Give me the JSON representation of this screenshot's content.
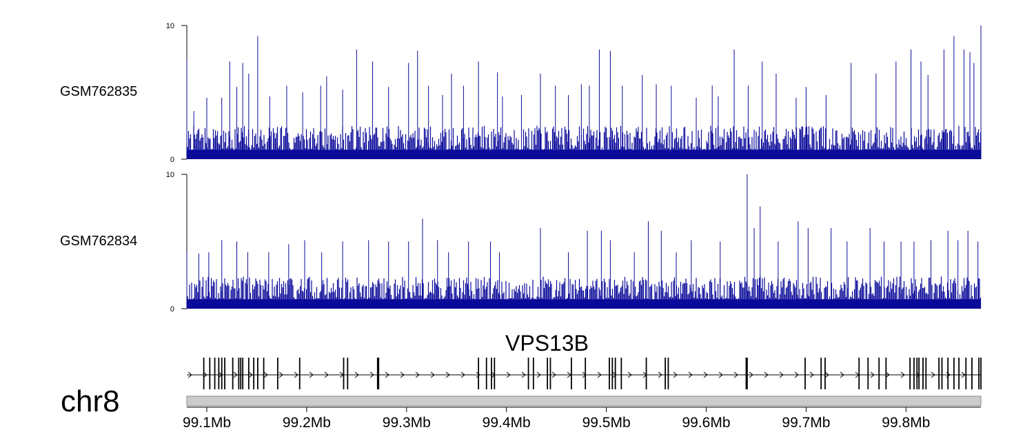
{
  "chromosome": "chr8",
  "gene": {
    "name": "VPS13B",
    "strand": "+",
    "start_mb": 99.08,
    "end_mb": 99.875,
    "exons_mb": [
      99.097,
      99.103,
      99.108,
      99.112,
      99.115,
      99.118,
      99.126,
      99.132,
      99.134,
      99.136,
      99.142,
      99.147,
      99.151,
      99.157,
      99.171,
      99.193,
      99.237,
      99.241,
      99.271,
      99.272,
      99.372,
      99.38,
      99.385,
      99.388,
      99.422,
      99.427,
      99.441,
      99.444,
      99.465,
      99.479,
      99.503,
      99.506,
      99.509,
      99.515,
      99.54,
      99.559,
      99.562,
      99.64,
      99.641,
      99.699,
      99.715,
      99.719,
      99.753,
      99.762,
      99.773,
      99.78,
      99.804,
      99.808,
      99.811,
      99.813,
      99.817,
      99.82,
      99.833,
      99.836,
      99.842,
      99.848,
      99.853,
      99.86,
      99.866,
      99.873,
      99.875
    ]
  },
  "chart_data": [
    {
      "type": "area",
      "track": "GSM762835",
      "ylim": [
        0,
        10
      ],
      "yticks": [
        "10",
        "0"
      ],
      "x_range_mb": [
        99.08,
        99.875
      ],
      "baseline": 0.7,
      "noise_max": 2.5,
      "peaks": [
        {
          "x_mb": 99.08,
          "y": 7.5
        },
        {
          "x_mb": 99.087,
          "y": 3.6
        },
        {
          "x_mb": 99.1,
          "y": 4.6
        },
        {
          "x_mb": 99.115,
          "y": 4.6
        },
        {
          "x_mb": 99.123,
          "y": 7.3
        },
        {
          "x_mb": 99.13,
          "y": 5.4
        },
        {
          "x_mb": 99.136,
          "y": 7.2
        },
        {
          "x_mb": 99.142,
          "y": 6.4
        },
        {
          "x_mb": 99.151,
          "y": 9.2
        },
        {
          "x_mb": 99.163,
          "y": 4.7
        },
        {
          "x_mb": 99.18,
          "y": 5.5
        },
        {
          "x_mb": 99.196,
          "y": 5.0
        },
        {
          "x_mb": 99.214,
          "y": 5.5
        },
        {
          "x_mb": 99.22,
          "y": 6.2
        },
        {
          "x_mb": 99.236,
          "y": 5.2
        },
        {
          "x_mb": 99.25,
          "y": 8.2
        },
        {
          "x_mb": 99.266,
          "y": 7.3
        },
        {
          "x_mb": 99.282,
          "y": 5.4
        },
        {
          "x_mb": 99.302,
          "y": 7.2
        },
        {
          "x_mb": 99.311,
          "y": 8.1
        },
        {
          "x_mb": 99.322,
          "y": 5.5
        },
        {
          "x_mb": 99.336,
          "y": 4.8
        },
        {
          "x_mb": 99.345,
          "y": 6.4
        },
        {
          "x_mb": 99.357,
          "y": 5.5
        },
        {
          "x_mb": 99.372,
          "y": 7.3
        },
        {
          "x_mb": 99.391,
          "y": 6.5
        },
        {
          "x_mb": 99.396,
          "y": 4.7
        },
        {
          "x_mb": 99.415,
          "y": 4.8
        },
        {
          "x_mb": 99.434,
          "y": 6.4
        },
        {
          "x_mb": 99.449,
          "y": 5.5
        },
        {
          "x_mb": 99.462,
          "y": 4.8
        },
        {
          "x_mb": 99.475,
          "y": 5.6
        },
        {
          "x_mb": 99.483,
          "y": 5.5
        },
        {
          "x_mb": 99.493,
          "y": 8.2
        },
        {
          "x_mb": 99.504,
          "y": 8.1
        },
        {
          "x_mb": 99.516,
          "y": 5.5
        },
        {
          "x_mb": 99.536,
          "y": 6.3
        },
        {
          "x_mb": 99.55,
          "y": 5.6
        },
        {
          "x_mb": 99.565,
          "y": 5.5
        },
        {
          "x_mb": 99.59,
          "y": 4.6
        },
        {
          "x_mb": 99.606,
          "y": 5.5
        },
        {
          "x_mb": 99.612,
          "y": 4.7
        },
        {
          "x_mb": 99.628,
          "y": 8.2
        },
        {
          "x_mb": 99.642,
          "y": 5.5
        },
        {
          "x_mb": 99.656,
          "y": 7.3
        },
        {
          "x_mb": 99.67,
          "y": 6.4
        },
        {
          "x_mb": 99.69,
          "y": 4.6
        },
        {
          "x_mb": 99.7,
          "y": 5.4
        },
        {
          "x_mb": 99.72,
          "y": 4.8
        },
        {
          "x_mb": 99.745,
          "y": 7.2
        },
        {
          "x_mb": 99.77,
          "y": 6.4
        },
        {
          "x_mb": 99.79,
          "y": 7.3
        },
        {
          "x_mb": 99.805,
          "y": 8.2
        },
        {
          "x_mb": 99.815,
          "y": 7.3
        },
        {
          "x_mb": 99.822,
          "y": 6.3
        },
        {
          "x_mb": 99.838,
          "y": 8.2
        },
        {
          "x_mb": 99.848,
          "y": 9.2
        },
        {
          "x_mb": 99.858,
          "y": 8.2
        },
        {
          "x_mb": 99.864,
          "y": 8.0
        },
        {
          "x_mb": 99.868,
          "y": 7.2
        },
        {
          "x_mb": 99.875,
          "y": 10.0
        }
      ]
    },
    {
      "type": "area",
      "track": "GSM762834",
      "ylim": [
        0,
        10
      ],
      "yticks": [
        "10",
        "0"
      ],
      "x_range_mb": [
        99.08,
        99.875
      ],
      "baseline": 0.7,
      "noise_max": 2.4,
      "peaks": [
        {
          "x_mb": 99.08,
          "y": 4.2
        },
        {
          "x_mb": 99.092,
          "y": 4.1
        },
        {
          "x_mb": 99.102,
          "y": 4.2
        },
        {
          "x_mb": 99.115,
          "y": 5.1
        },
        {
          "x_mb": 99.13,
          "y": 5.0
        },
        {
          "x_mb": 99.141,
          "y": 4.2
        },
        {
          "x_mb": 99.162,
          "y": 4.2
        },
        {
          "x_mb": 99.182,
          "y": 4.8
        },
        {
          "x_mb": 99.198,
          "y": 5.1
        },
        {
          "x_mb": 99.215,
          "y": 4.2
        },
        {
          "x_mb": 99.236,
          "y": 5.0
        },
        {
          "x_mb": 99.262,
          "y": 5.1
        },
        {
          "x_mb": 99.282,
          "y": 5.0
        },
        {
          "x_mb": 99.302,
          "y": 5.0
        },
        {
          "x_mb": 99.316,
          "y": 6.7
        },
        {
          "x_mb": 99.331,
          "y": 5.1
        },
        {
          "x_mb": 99.342,
          "y": 4.2
        },
        {
          "x_mb": 99.362,
          "y": 5.0
        },
        {
          "x_mb": 99.384,
          "y": 5.0
        },
        {
          "x_mb": 99.393,
          "y": 4.2
        },
        {
          "x_mb": 99.434,
          "y": 6.0
        },
        {
          "x_mb": 99.462,
          "y": 4.2
        },
        {
          "x_mb": 99.481,
          "y": 5.8
        },
        {
          "x_mb": 99.495,
          "y": 5.8
        },
        {
          "x_mb": 99.504,
          "y": 5.1
        },
        {
          "x_mb": 99.528,
          "y": 4.2
        },
        {
          "x_mb": 99.542,
          "y": 6.5
        },
        {
          "x_mb": 99.555,
          "y": 5.8
        },
        {
          "x_mb": 99.57,
          "y": 4.2
        },
        {
          "x_mb": 99.585,
          "y": 5.1
        },
        {
          "x_mb": 99.614,
          "y": 5.0
        },
        {
          "x_mb": 99.641,
          "y": 10.0
        },
        {
          "x_mb": 99.648,
          "y": 6.0
        },
        {
          "x_mb": 99.654,
          "y": 7.6
        },
        {
          "x_mb": 99.672,
          "y": 5.0
        },
        {
          "x_mb": 99.692,
          "y": 6.5
        },
        {
          "x_mb": 99.702,
          "y": 6.0
        },
        {
          "x_mb": 99.725,
          "y": 6.0
        },
        {
          "x_mb": 99.741,
          "y": 5.0
        },
        {
          "x_mb": 99.764,
          "y": 6.0
        },
        {
          "x_mb": 99.778,
          "y": 5.0
        },
        {
          "x_mb": 99.795,
          "y": 5.0
        },
        {
          "x_mb": 99.808,
          "y": 5.0
        },
        {
          "x_mb": 99.825,
          "y": 5.1
        },
        {
          "x_mb": 99.842,
          "y": 5.8
        },
        {
          "x_mb": 99.852,
          "y": 5.1
        },
        {
          "x_mb": 99.862,
          "y": 5.8
        },
        {
          "x_mb": 99.872,
          "y": 5.0
        }
      ]
    }
  ],
  "x_axis": {
    "ticks": [
      {
        "value_mb": 99.1,
        "label": "99.1Mb"
      },
      {
        "value_mb": 99.2,
        "label": "99.2Mb"
      },
      {
        "value_mb": 99.3,
        "label": "99.3Mb"
      },
      {
        "value_mb": 99.4,
        "label": "99.4Mb"
      },
      {
        "value_mb": 99.5,
        "label": "99.5Mb"
      },
      {
        "value_mb": 99.6,
        "label": "99.6Mb"
      },
      {
        "value_mb": 99.7,
        "label": "99.7Mb"
      },
      {
        "value_mb": 99.8,
        "label": "99.8Mb"
      }
    ]
  },
  "colors": {
    "signal": "#0a0a9a",
    "axis": "#000000",
    "ideogram_fill": "#cccccc",
    "ideogram_stroke": "#888888",
    "gene": "#000000"
  }
}
